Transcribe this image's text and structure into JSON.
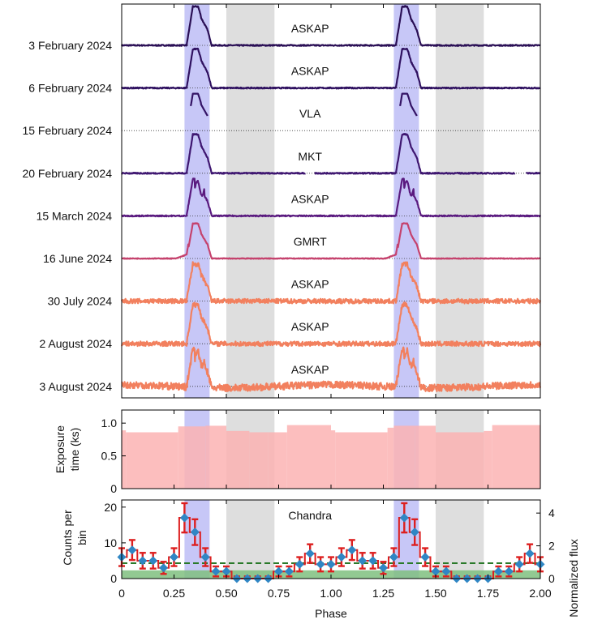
{
  "colors": {
    "blue_band": "#b4b4f4",
    "grey_band": "#d6d6d6",
    "exposure_fill": "#fbb3b3",
    "counts_bar": "#dd1f1f",
    "counts_marker": "#2f86c4",
    "bg_fill": "#7fbf7f",
    "dashed_level": "#2a7a2a"
  },
  "chart_data": {
    "type": "line",
    "x_axis": {
      "label": "Phase",
      "range": [
        0,
        2
      ],
      "ticks": [
        "0",
        "0.25",
        "0.50",
        "0.75",
        "1.00",
        "1.25",
        "1.50",
        "1.75",
        "2.00"
      ],
      "tick_values": [
        0,
        0.25,
        0.5,
        0.75,
        1.0,
        1.25,
        1.5,
        1.75,
        2.0
      ]
    },
    "shaded_regions": {
      "blue": [
        [
          0.3,
          0.42
        ],
        [
          1.3,
          1.42
        ]
      ],
      "grey": [
        [
          0.5,
          0.73
        ],
        [
          1.5,
          1.73
        ]
      ]
    },
    "panel_top": {
      "description": "Radio pulse profiles, stacked by observation date",
      "profiles": [
        {
          "date": "3 February 2024",
          "telescope": "ASKAP",
          "color": "#2a0f55",
          "peak_height": 1.0,
          "double_peak": false,
          "baseline_noise": 0.005,
          "baseline_rise": 0.0,
          "pre_bump": 0.0,
          "gaps": [],
          "full_range": [
            0,
            2
          ]
        },
        {
          "date": "6 February 2024",
          "telescope": "ASKAP",
          "color": "#2f1160",
          "peak_height": 1.0,
          "double_peak": false,
          "baseline_noise": 0.005,
          "baseline_rise": 0.0,
          "pre_bump": 0.0,
          "gaps": [],
          "full_range": [
            0,
            2
          ]
        },
        {
          "date": "15 February 2024",
          "telescope": "VLA",
          "color": "#341365",
          "peak_height": 0.95,
          "double_peak": false,
          "baseline_noise": 0.0,
          "baseline_rise": 0.0,
          "pre_bump": 0.0,
          "gaps": [],
          "full_range": [
            0.33,
            0.41
          ],
          "full_range_2": [
            1.33,
            1.41
          ]
        },
        {
          "date": "20 February 2024",
          "telescope": "MKT",
          "color": "#3e1670",
          "peak_height": 1.0,
          "double_peak": false,
          "baseline_noise": 0.005,
          "baseline_rise": 0.0,
          "pre_bump": 0.0,
          "gaps": [
            [
              0.88,
              0.92
            ],
            [
              1.88,
              1.93
            ]
          ],
          "full_range": [
            0,
            2
          ]
        },
        {
          "date": "15 March 2024",
          "telescope": "ASKAP",
          "color": "#5a1a7f",
          "peak_height": 0.95,
          "double_peak": true,
          "baseline_noise": 0.005,
          "baseline_rise": 0.0,
          "pre_bump": 0.0,
          "gaps": [],
          "full_range": [
            0,
            2
          ]
        },
        {
          "date": "16 June 2024",
          "telescope": "GMRT",
          "color": "#c5426d",
          "peak_height": 0.9,
          "double_peak": false,
          "baseline_noise": 0.003,
          "baseline_rise": 0.0,
          "pre_bump": 0.12,
          "gaps": [],
          "full_range": [
            0,
            2
          ]
        },
        {
          "date": "30 July 2024",
          "telescope": "ASKAP",
          "color": "#f2805e",
          "peak_height": 0.95,
          "double_peak": false,
          "baseline_noise": 0.02,
          "baseline_rise": 0.0,
          "pre_bump": 0.0,
          "gaps": [],
          "full_range": [
            0,
            2
          ]
        },
        {
          "date": "2 August 2024",
          "telescope": "ASKAP",
          "color": "#f2805e",
          "peak_height": 1.0,
          "double_peak": false,
          "baseline_noise": 0.02,
          "baseline_rise": 0.0,
          "pre_bump": 0.0,
          "gaps": [],
          "full_range": [
            0,
            2
          ]
        },
        {
          "date": "3 August 2024",
          "telescope": "ASKAP",
          "color": "#f2805e",
          "peak_height": 1.0,
          "double_peak": true,
          "baseline_noise": 0.03,
          "baseline_rise": 0.08,
          "pre_bump": 0.0,
          "gaps": [],
          "full_range": [
            0,
            2
          ]
        }
      ]
    },
    "panel_mid": {
      "ylabel_line1": "Exposure",
      "ylabel_line2": "time (ks)",
      "ylim": [
        0,
        1.2
      ],
      "yticks": [
        "0",
        "0.5",
        "1.0"
      ],
      "ytick_values": [
        0,
        0.5,
        1.0
      ],
      "steps": [
        [
          0,
          0.02,
          0.89
        ],
        [
          0.02,
          0.27,
          0.86
        ],
        [
          0.27,
          0.4,
          0.95
        ],
        [
          0.4,
          0.5,
          0.96
        ],
        [
          0.5,
          0.61,
          0.88
        ],
        [
          0.61,
          0.7,
          0.86
        ],
        [
          0.7,
          0.79,
          0.86
        ],
        [
          0.79,
          1.0,
          0.97
        ],
        [
          1.0,
          1.02,
          0.89
        ],
        [
          1.02,
          1.27,
          0.86
        ],
        [
          1.27,
          1.3,
          0.93
        ],
        [
          1.3,
          1.4,
          0.96
        ],
        [
          1.4,
          1.5,
          0.96
        ],
        [
          1.5,
          1.73,
          0.86
        ],
        [
          1.73,
          1.77,
          0.88
        ],
        [
          1.77,
          2.0,
          0.97
        ]
      ]
    },
    "panel_bot": {
      "annotation": "Chandra",
      "ylabel_line1": "Counts per",
      "ylabel_line2": "bin",
      "ylim": [
        0,
        22
      ],
      "yticks": [
        "0",
        "10",
        "20"
      ],
      "ytick_values": [
        0,
        10,
        20
      ],
      "right_ylabel": "Normalized flux",
      "right_ylim": [
        0,
        4.8
      ],
      "right_yticks": [
        "0",
        "2",
        "4"
      ],
      "right_ytick_values": [
        0,
        2,
        4
      ],
      "background_level": 2.3,
      "dashed_level": 4.3,
      "phase": [
        0.0,
        0.05,
        0.1,
        0.15,
        0.2,
        0.25,
        0.3,
        0.35,
        0.4,
        0.45,
        0.5,
        0.55,
        0.6,
        0.65,
        0.7,
        0.75,
        0.8,
        0.85,
        0.9,
        0.95,
        1.0,
        1.05,
        1.1,
        1.15,
        1.2,
        1.25,
        1.3,
        1.35,
        1.4,
        1.45,
        1.5,
        1.55,
        1.6,
        1.65,
        1.7,
        1.75,
        1.8,
        1.85,
        1.9,
        1.95,
        2.0
      ],
      "counts": [
        6,
        8,
        5,
        5,
        3,
        6,
        17,
        13,
        6,
        2,
        2,
        0,
        0,
        0,
        0,
        2,
        2,
        4,
        7,
        4,
        4,
        6,
        8,
        5,
        5,
        3,
        6,
        17,
        13,
        6,
        2,
        2,
        0,
        0,
        0,
        0,
        2,
        2,
        4,
        7,
        4
      ],
      "errors": [
        2.5,
        2.8,
        2.2,
        2.2,
        1.7,
        2.5,
        4.1,
        3.6,
        2.5,
        1.4,
        1.4,
        0.6,
        0.6,
        0.6,
        0.6,
        1.4,
        1.4,
        2.0,
        2.6,
        2.0,
        2.0,
        2.5,
        2.8,
        2.2,
        2.2,
        1.7,
        2.5,
        4.1,
        3.6,
        2.5,
        1.4,
        1.4,
        0.6,
        0.6,
        0.6,
        0.6,
        1.4,
        1.4,
        2.0,
        2.6,
        2.0
      ]
    }
  }
}
